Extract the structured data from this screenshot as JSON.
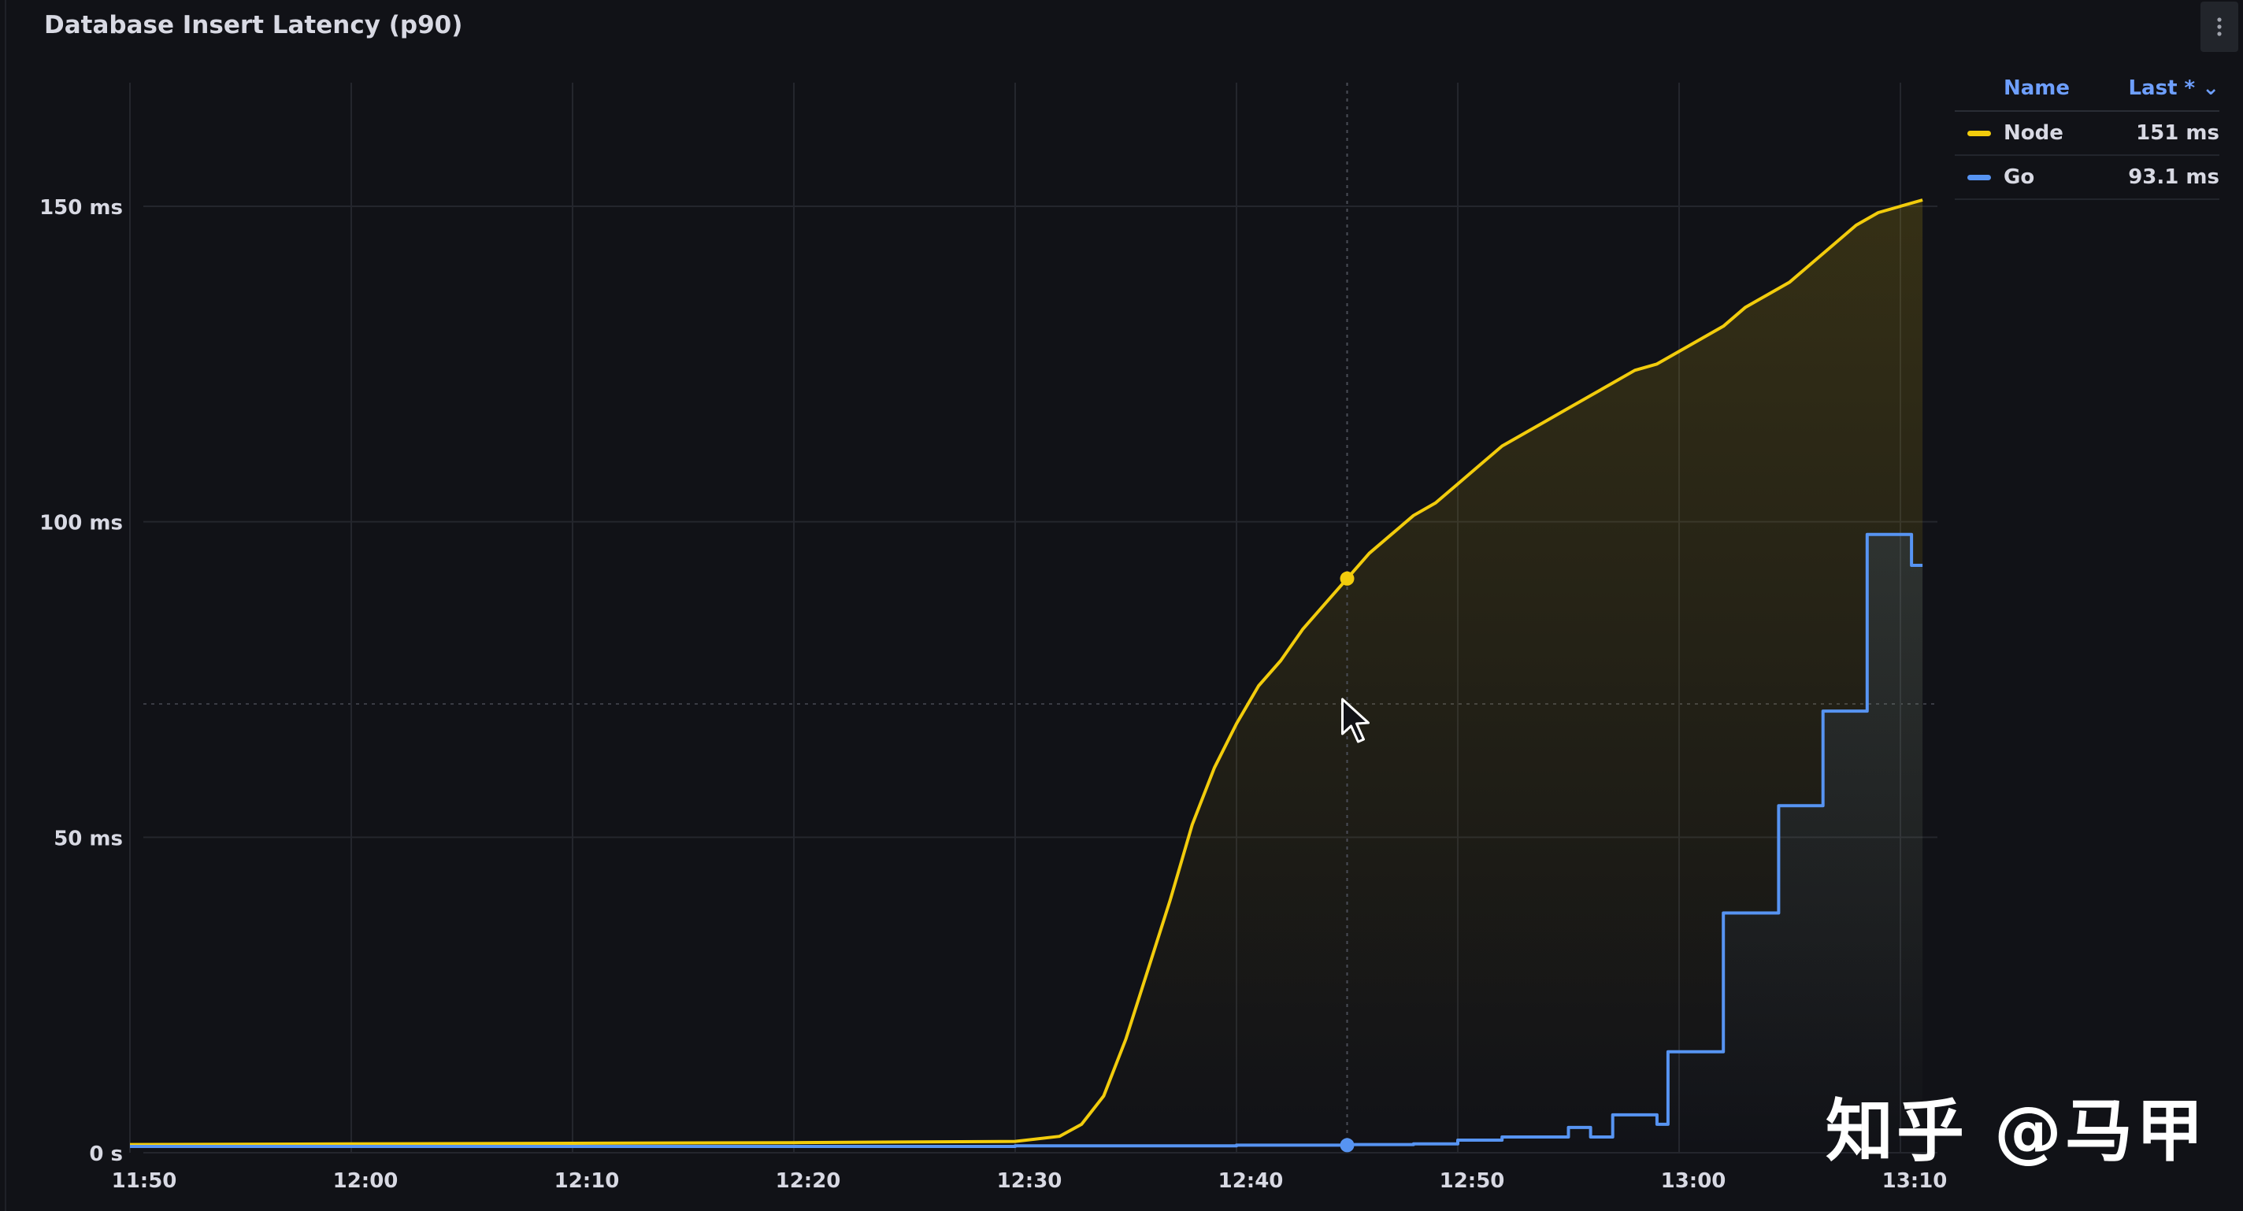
{
  "panel": {
    "title": "Database Insert Latency (p90)"
  },
  "legend": {
    "header_name": "Name",
    "header_last": "Last * ⌄",
    "rows": [
      {
        "name": "Node",
        "value": "151 ms",
        "color": "#f2cc0c"
      },
      {
        "name": "Go",
        "value": "93.1 ms",
        "color": "#5794f2"
      }
    ]
  },
  "watermark": "知乎 @马甲",
  "chart_data": {
    "type": "line",
    "title": "Database Insert Latency (p90)",
    "x_unit": "time",
    "y_unit": "ms",
    "x_range": [
      "11:50",
      "13:10"
    ],
    "ylim": [
      0,
      150
    ],
    "y_ticks": [
      {
        "value": 0,
        "label": "0 s"
      },
      {
        "value": 50,
        "label": "50 ms"
      },
      {
        "value": 100,
        "label": "100 ms"
      },
      {
        "value": 150,
        "label": "150 ms"
      }
    ],
    "x_ticks": [
      "11:50",
      "12:00",
      "12:10",
      "12:20",
      "12:30",
      "12:40",
      "12:50",
      "13:00",
      "13:10"
    ],
    "grid": true,
    "legend_position": "top-right",
    "hover_time": "12:45",
    "series": [
      {
        "name": "Node",
        "color": "#f2cc0c",
        "fill": true,
        "points": [
          [
            "11:50",
            1.3
          ],
          [
            "12:00",
            1.4
          ],
          [
            "12:10",
            1.5
          ],
          [
            "12:20",
            1.6
          ],
          [
            "12:30",
            1.8
          ],
          [
            "12:32",
            2.6
          ],
          [
            "12:33",
            4.5
          ],
          [
            "12:34",
            9
          ],
          [
            "12:35",
            18
          ],
          [
            "12:36",
            29
          ],
          [
            "12:37",
            40
          ],
          [
            "12:38",
            52
          ],
          [
            "12:39",
            61
          ],
          [
            "12:40",
            68
          ],
          [
            "12:41",
            74
          ],
          [
            "12:42",
            78
          ],
          [
            "12:43",
            83
          ],
          [
            "12:44",
            87
          ],
          [
            "12:45",
            91
          ],
          [
            "12:46",
            95
          ],
          [
            "12:47",
            98
          ],
          [
            "12:48",
            101
          ],
          [
            "12:49",
            103
          ],
          [
            "12:50",
            106
          ],
          [
            "12:51",
            109
          ],
          [
            "12:52",
            112
          ],
          [
            "12:53",
            114
          ],
          [
            "12:54",
            116
          ],
          [
            "12:55",
            118
          ],
          [
            "12:56",
            120
          ],
          [
            "12:57",
            122
          ],
          [
            "12:58",
            124
          ],
          [
            "12:59",
            125
          ],
          [
            "13:00",
            127
          ],
          [
            "13:01",
            129
          ],
          [
            "13:02",
            131
          ],
          [
            "13:03",
            134
          ],
          [
            "13:04",
            136
          ],
          [
            "13:05",
            138
          ],
          [
            "13:06",
            141
          ],
          [
            "13:07",
            144
          ],
          [
            "13:08",
            147
          ],
          [
            "13:09",
            149
          ],
          [
            "13:10",
            150
          ],
          [
            "13:11",
            151
          ]
        ]
      },
      {
        "name": "Go",
        "color": "#5794f2",
        "fill": true,
        "step": true,
        "points": [
          [
            "11:50",
            1.0
          ],
          [
            "12:00",
            1.0
          ],
          [
            "12:10",
            1.0
          ],
          [
            "12:20",
            1.0
          ],
          [
            "12:30",
            1.1
          ],
          [
            "12:40",
            1.2
          ],
          [
            "12:45",
            1.3
          ],
          [
            "12:48",
            1.4
          ],
          [
            "12:50",
            2.0
          ],
          [
            "12:52",
            2.5
          ],
          [
            "12:55",
            4.0
          ],
          [
            "12:56",
            2.5
          ],
          [
            "12:57",
            6.0
          ],
          [
            "12:58",
            6.0
          ],
          [
            "12:59",
            4.5
          ],
          [
            "12:59.5",
            16
          ],
          [
            "13:01.5",
            16
          ],
          [
            "13:02",
            38
          ],
          [
            "13:04",
            38
          ],
          [
            "13:04.5",
            55
          ],
          [
            "13:06",
            55
          ],
          [
            "13:06.5",
            70
          ],
          [
            "13:08",
            70
          ],
          [
            "13:08.5",
            98
          ],
          [
            "13:10",
            98
          ],
          [
            "13:10.5",
            93.1
          ],
          [
            "13:11",
            93.1
          ]
        ]
      }
    ]
  }
}
